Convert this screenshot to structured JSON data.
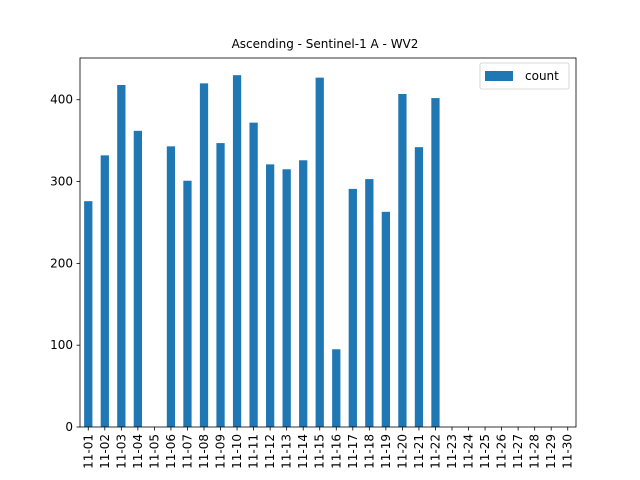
{
  "chart_data": {
    "type": "bar",
    "title": "Ascending - Sentinel-1 A - WV2",
    "xlabel": "",
    "ylabel": "",
    "categories": [
      "11-01",
      "11-02",
      "11-03",
      "11-04",
      "11-05",
      "11-06",
      "11-07",
      "11-08",
      "11-09",
      "11-10",
      "11-11",
      "11-12",
      "11-13",
      "11-14",
      "11-15",
      "11-16",
      "11-17",
      "11-18",
      "11-19",
      "11-20",
      "11-21",
      "11-22",
      "11-23",
      "11-24",
      "11-25",
      "11-26",
      "11-27",
      "11-28",
      "11-29",
      "11-30"
    ],
    "series": [
      {
        "name": "count",
        "color": "#1f77b4",
        "values": [
          276,
          332,
          418,
          362,
          0,
          343,
          301,
          420,
          347,
          430,
          372,
          321,
          315,
          326,
          427,
          95,
          291,
          303,
          263,
          407,
          342,
          402,
          0,
          0,
          0,
          0,
          0,
          0,
          0,
          0
        ]
      }
    ],
    "ylim": [
      0,
      451
    ],
    "yticks": [
      0,
      100,
      200,
      300,
      400
    ],
    "legend": "upper right",
    "grid": false
  }
}
